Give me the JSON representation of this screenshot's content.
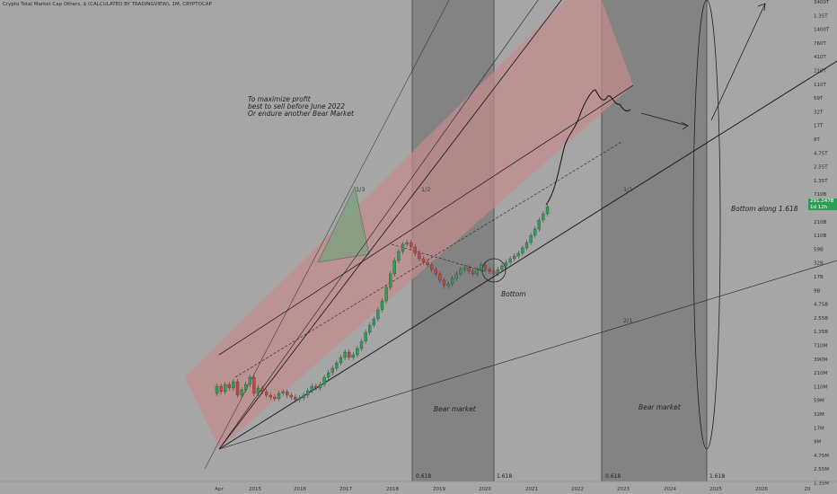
{
  "title": "Crypto Total Market Cap Others, $ (CALCULATED BY TRADINGVIEW), 1M, CRYPTOCAP",
  "price_axis": [
    "3400T",
    "1.35T",
    "1400T",
    "760T",
    "410T",
    "210T",
    "110T",
    "59T",
    "32T",
    "17T",
    "9T",
    "4.75T",
    "2.55T",
    "1.35T",
    "710B",
    "390B",
    "210B",
    "110B",
    "59B",
    "32B",
    "17B",
    "9B",
    "4.75B",
    "2.55B",
    "1.35B",
    "710M",
    "390M",
    "210M",
    "110M",
    "59M",
    "32M",
    "17M",
    "9M",
    "4.75M",
    "2.55M",
    "1.35M"
  ],
  "time_axis": [
    "Apr",
    "2015",
    "2016",
    "2017",
    "2018",
    "2019",
    "2020",
    "2021",
    "2022",
    "2023",
    "2024",
    "2025",
    "2026",
    "20"
  ],
  "current_price": {
    "value": "291.247B",
    "sub": "1d 12h"
  },
  "annotations": {
    "profit_note": [
      "To maximize profit",
      "best to sell before June 2022",
      "Or endure another Bear Market"
    ],
    "bottom": "Bottom",
    "bottom_along": "Bottom along 1.618",
    "bear_market_1": "Bear market",
    "bear_market_2": "Bear market"
  },
  "fan_labels": {
    "one_third": "1/3",
    "one_half": "1/2",
    "one_one": "1/1",
    "two_one": "2/1"
  },
  "fib_labels": {
    "a": "0.618",
    "b": "1.618",
    "c": "0.618",
    "d": "1.618"
  },
  "colors": {
    "background": "#a6a6a6",
    "bear_zone": "#7c7c7c",
    "red_fill": "#c48b8b",
    "green_fill": "#7fa07f",
    "up_candle": "#2e9e57",
    "down_candle": "#d0413c",
    "price_tag": "#2e9e57"
  }
}
